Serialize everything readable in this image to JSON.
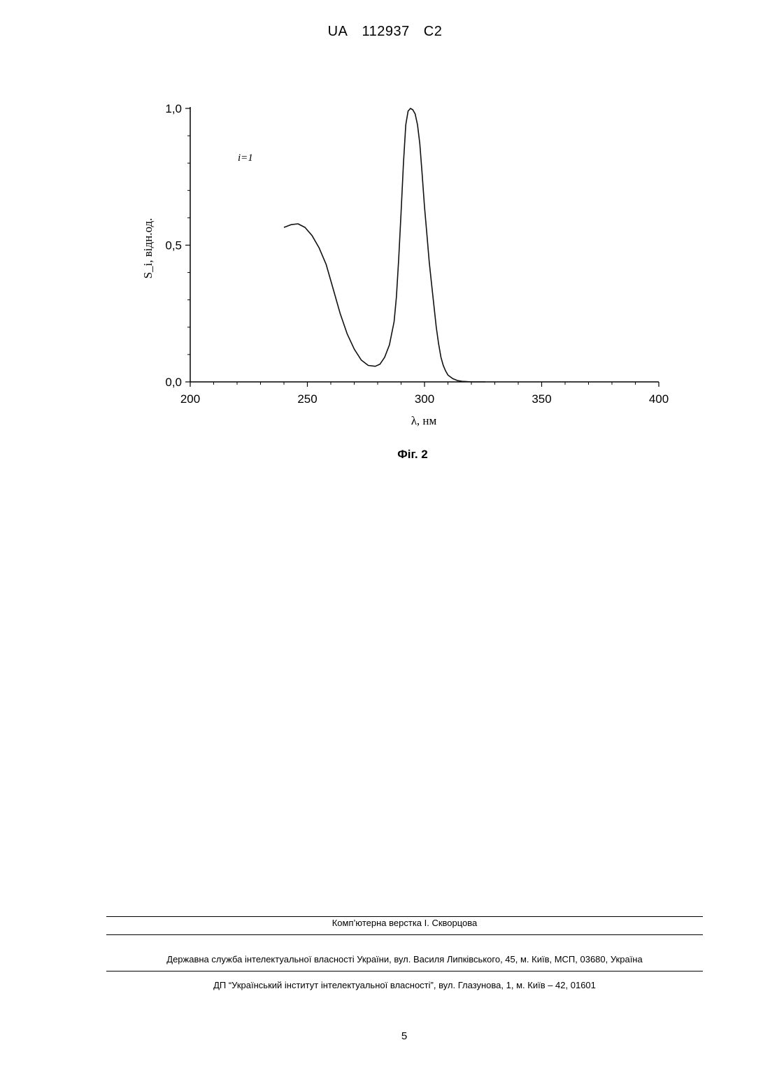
{
  "header": {
    "country": "UA",
    "number": "112937",
    "kind": "C2"
  },
  "figure_caption": "Фіг. 2",
  "chart_data": {
    "type": "line",
    "xlabel": "λ, нм",
    "ylabel": "S_i, відн.од.",
    "annotation": "i=1",
    "xlim": [
      200,
      400
    ],
    "ylim": [
      0,
      1
    ],
    "x_ticks": [
      "200",
      "250",
      "300",
      "350",
      "400"
    ],
    "y_ticks": [
      "0,0",
      "0,5",
      "1,0"
    ],
    "grid": false,
    "series": [
      {
        "x": [
          240,
          243,
          246,
          249,
          252,
          255,
          258,
          261,
          264,
          267,
          270,
          273,
          276,
          279,
          281,
          283,
          285,
          287,
          288,
          289,
          290,
          291,
          292,
          293,
          294,
          295,
          296,
          297,
          298,
          299,
          300,
          301,
          302,
          303,
          304,
          305,
          306,
          307,
          308,
          309,
          310,
          312,
          314,
          316,
          318,
          320,
          322,
          326
        ],
        "y": [
          0.565,
          0.575,
          0.578,
          0.565,
          0.535,
          0.49,
          0.43,
          0.34,
          0.25,
          0.175,
          0.12,
          0.08,
          0.06,
          0.057,
          0.065,
          0.09,
          0.135,
          0.22,
          0.31,
          0.45,
          0.62,
          0.8,
          0.94,
          0.99,
          1.0,
          0.995,
          0.98,
          0.94,
          0.87,
          0.76,
          0.64,
          0.54,
          0.44,
          0.36,
          0.28,
          0.2,
          0.14,
          0.09,
          0.06,
          0.04,
          0.025,
          0.012,
          0.005,
          0.002,
          0.001,
          0.0,
          0.0,
          0.0
        ]
      }
    ]
  },
  "footer": {
    "line1": "Комп’ютерна верстка І. Скворцова",
    "line2": "Державна служба інтелектуальної власності України, вул. Василя Липківського, 45, м. Київ, МСП, 03680, Україна",
    "line3": "ДП “Український інститут інтелектуальної власності”, вул. Глазунова, 1, м. Київ – 42, 01601"
  },
  "page_number": "5"
}
